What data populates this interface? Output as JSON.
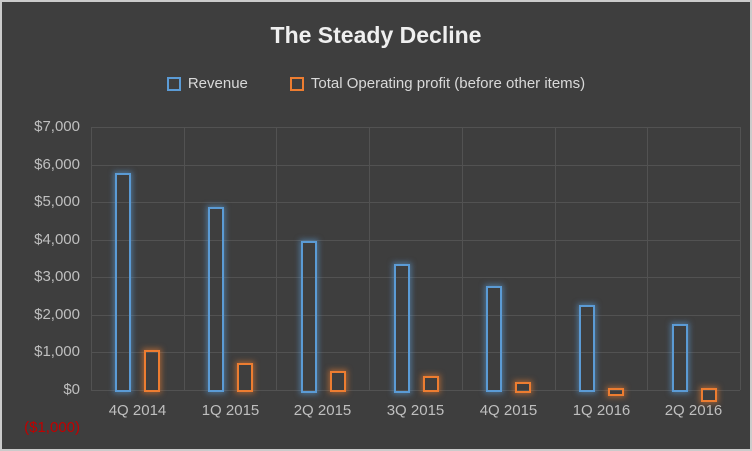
{
  "title": "The Steady Decline",
  "legend": [
    {
      "label": "Revenue",
      "color": "#5b9bd5"
    },
    {
      "label": "Total Operating profit (before other items)",
      "color": "#ed7d31"
    }
  ],
  "chart_data": {
    "type": "bar",
    "title": "The Steady Decline",
    "categories": [
      "4Q 2014",
      "1Q 2015",
      "2Q 2015",
      "3Q 2015",
      "4Q 2015",
      "1Q 2016",
      "2Q 2016"
    ],
    "series": [
      {
        "name": "Revenue",
        "color": "#5b9bd5",
        "values": [
          5700,
          4800,
          3900,
          3300,
          2700,
          2200,
          1700
        ]
      },
      {
        "name": "Total Operating profit (before other items)",
        "color": "#ed7d31",
        "values": [
          1000,
          650,
          430,
          300,
          160,
          -100,
          -250
        ]
      }
    ],
    "xlabel": "",
    "ylabel": "",
    "ylim": [
      -1000,
      7000
    ],
    "ytick_step": 1000,
    "yticks": [
      {
        "value": 7000,
        "label": "$7,000",
        "color": "#bfbfbf"
      },
      {
        "value": 6000,
        "label": "$6,000",
        "color": "#bfbfbf"
      },
      {
        "value": 5000,
        "label": "$5,000",
        "color": "#bfbfbf"
      },
      {
        "value": 4000,
        "label": "$4,000",
        "color": "#bfbfbf"
      },
      {
        "value": 3000,
        "label": "$3,000",
        "color": "#bfbfbf"
      },
      {
        "value": 2000,
        "label": "$2,000",
        "color": "#bfbfbf"
      },
      {
        "value": 1000,
        "label": "$1,000",
        "color": "#bfbfbf"
      },
      {
        "value": 0,
        "label": "$0",
        "color": "#bfbfbf"
      },
      {
        "value": -1000,
        "label": "($1,000)",
        "color": "#c00000"
      }
    ],
    "grid": true,
    "legend_position": "top",
    "bar_style": "outlined-glow",
    "background_color": "#3e3e3e",
    "gridline_color": "#525252",
    "negative_tick_color": "#c00000"
  }
}
